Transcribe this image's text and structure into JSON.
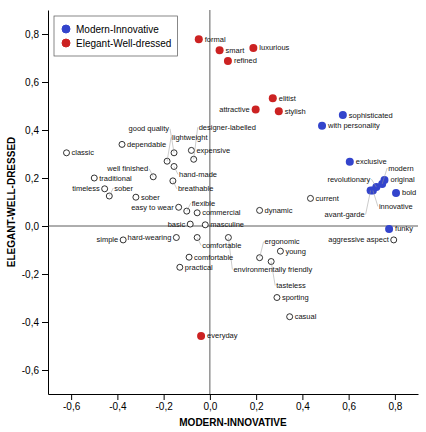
{
  "chart_data": {
    "type": "scatter",
    "xlabel": "MODERN-INNOVATIVE",
    "ylabel": "ELEGANT-WELL-DRESSED",
    "xlim": [
      -0.7,
      0.9
    ],
    "ylim": [
      -0.7,
      0.9
    ],
    "xticks": [
      {
        "value": -0.6,
        "label": "-0,6"
      },
      {
        "value": -0.4,
        "label": "-0,4"
      },
      {
        "value": -0.2,
        "label": "-0,2"
      },
      {
        "value": 0.0,
        "label": "0,0"
      },
      {
        "value": 0.2,
        "label": "0,2"
      },
      {
        "value": 0.4,
        "label": "0,4"
      },
      {
        "value": 0.6,
        "label": "0,6"
      },
      {
        "value": 0.8,
        "label": "0,8"
      }
    ],
    "yticks": [
      {
        "value": -0.6,
        "label": "-0,6"
      },
      {
        "value": -0.4,
        "label": "-0,4"
      },
      {
        "value": -0.2,
        "label": "-0,2"
      },
      {
        "value": 0.0,
        "label": "0,0"
      },
      {
        "value": 0.2,
        "label": "0,2"
      },
      {
        "value": 0.4,
        "label": "0,4"
      },
      {
        "value": 0.6,
        "label": "0,6"
      },
      {
        "value": 0.8,
        "label": "0,8"
      }
    ],
    "grid": false,
    "legend": "upper-left",
    "series": [
      {
        "color": "black",
        "marker": "open-circle",
        "x": [
          -0.62,
          -0.5,
          -0.455,
          -0.435,
          -0.38,
          -0.32,
          -0.245,
          -0.185,
          -0.155,
          -0.16,
          -0.155,
          -0.08,
          -0.07,
          -0.135,
          -0.1,
          -0.055,
          -0.085,
          -0.02,
          -0.055,
          -0.145,
          -0.09,
          -0.13,
          -0.375,
          0.08,
          0.215,
          0.215,
          0.265,
          0.305,
          0.29,
          0.345,
          0.435,
          0.795
        ],
        "values": [
          0.305,
          0.2,
          0.155,
          0.125,
          0.34,
          0.12,
          0.205,
          0.27,
          0.248,
          0.188,
          0.305,
          0.315,
          0.278,
          0.078,
          0.062,
          0.055,
          0.008,
          0.005,
          -0.048,
          -0.048,
          -0.13,
          -0.172,
          -0.058,
          -0.048,
          0.065,
          -0.132,
          -0.148,
          -0.105,
          -0.298,
          -0.378,
          0.115,
          -0.058
        ],
        "labels": [
          "classic",
          "traditional",
          "timeless",
          "sober",
          "dependable",
          "sober",
          "well finished",
          "lightweight",
          "hand-made",
          "breathable",
          "good quality",
          "expensive",
          "designer-labelled",
          "easy to wear",
          "flexible",
          "commercial",
          "basic",
          "masculine",
          "comfortable",
          "hard-wearing",
          "comfortable",
          "practical",
          "simple",
          "environmentally friendly",
          "dynamic",
          "ergonomic",
          "tasteless",
          "young",
          "sporting",
          "casual",
          "current",
          "aggressive aspect"
        ]
      },
      {
        "name": "Modern-Innovative",
        "color": "#3344cc",
        "marker": "circle",
        "x": [
          0.485,
          0.575,
          0.605,
          0.72,
          0.705,
          0.695,
          0.745,
          0.755,
          0.805,
          0.775
        ],
        "values": [
          0.418,
          0.462,
          0.268,
          0.162,
          0.148,
          0.148,
          0.175,
          0.192,
          0.138,
          -0.012
        ],
        "labels": [
          "with personality",
          "sophisticated",
          "exclusive",
          "revolutionary",
          "innovative",
          "avant-garde",
          "modern",
          "original",
          "bold",
          "funky"
        ]
      },
      {
        "name": "Elegant-Well-dressed",
        "color": "#cc2222",
        "marker": "circle",
        "x": [
          -0.048,
          0.042,
          0.188,
          0.078,
          0.272,
          0.198,
          0.298,
          -0.038
        ],
        "values": [
          0.778,
          0.732,
          0.742,
          0.688,
          0.532,
          0.485,
          0.478,
          -0.458
        ],
        "labels": [
          "formal",
          "smart",
          "luxurious",
          "refined",
          "elitist",
          "attractive",
          "stylish",
          "everyday"
        ]
      }
    ]
  }
}
